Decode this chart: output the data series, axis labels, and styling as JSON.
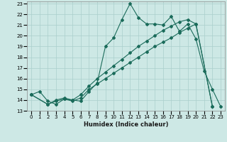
{
  "title": "",
  "xlabel": "Humidex (Indice chaleur)",
  "bg_color": "#cde8e5",
  "line_color": "#1a6b5a",
  "grid_color": "#aacfcc",
  "xlim": [
    -0.5,
    23.5
  ],
  "ylim": [
    13,
    23.2
  ],
  "yticks": [
    13,
    14,
    15,
    16,
    17,
    18,
    19,
    20,
    21,
    22,
    23
  ],
  "xticks": [
    0,
    1,
    2,
    3,
    4,
    5,
    6,
    7,
    8,
    9,
    10,
    11,
    12,
    13,
    14,
    15,
    16,
    17,
    18,
    19,
    20,
    21,
    22,
    23
  ],
  "series": [
    {
      "x": [
        0,
        1,
        2,
        3,
        4,
        5,
        6,
        7,
        8,
        9,
        10,
        11,
        12,
        13,
        14,
        15,
        16,
        17,
        18,
        19,
        20,
        21,
        22,
        23
      ],
      "y": [
        14.5,
        14.8,
        13.9,
        13.6,
        14.1,
        14.0,
        13.9,
        14.8,
        15.6,
        19.0,
        19.8,
        21.5,
        23.0,
        21.7,
        21.1,
        21.1,
        21.0,
        21.8,
        20.4,
        21.1,
        19.7,
        16.7,
        15.0,
        13.4
      ]
    },
    {
      "x": [
        0,
        2,
        3,
        4,
        5,
        6,
        7,
        8,
        9,
        10,
        11,
        12,
        13,
        14,
        15,
        16,
        17,
        18,
        19,
        20,
        22
      ],
      "y": [
        14.5,
        13.6,
        13.9,
        14.1,
        13.9,
        14.2,
        15.0,
        15.5,
        16.0,
        16.5,
        17.0,
        17.5,
        18.0,
        18.5,
        19.0,
        19.4,
        19.8,
        20.3,
        20.7,
        21.1,
        13.4
      ]
    },
    {
      "x": [
        0,
        2,
        3,
        4,
        5,
        6,
        7,
        8,
        9,
        10,
        11,
        12,
        13,
        14,
        15,
        16,
        17,
        18,
        19,
        20,
        22
      ],
      "y": [
        14.5,
        13.6,
        14.0,
        14.2,
        14.0,
        14.5,
        15.3,
        16.0,
        16.6,
        17.2,
        17.8,
        18.4,
        19.0,
        19.5,
        20.0,
        20.5,
        20.9,
        21.3,
        21.5,
        21.1,
        13.4
      ]
    }
  ]
}
